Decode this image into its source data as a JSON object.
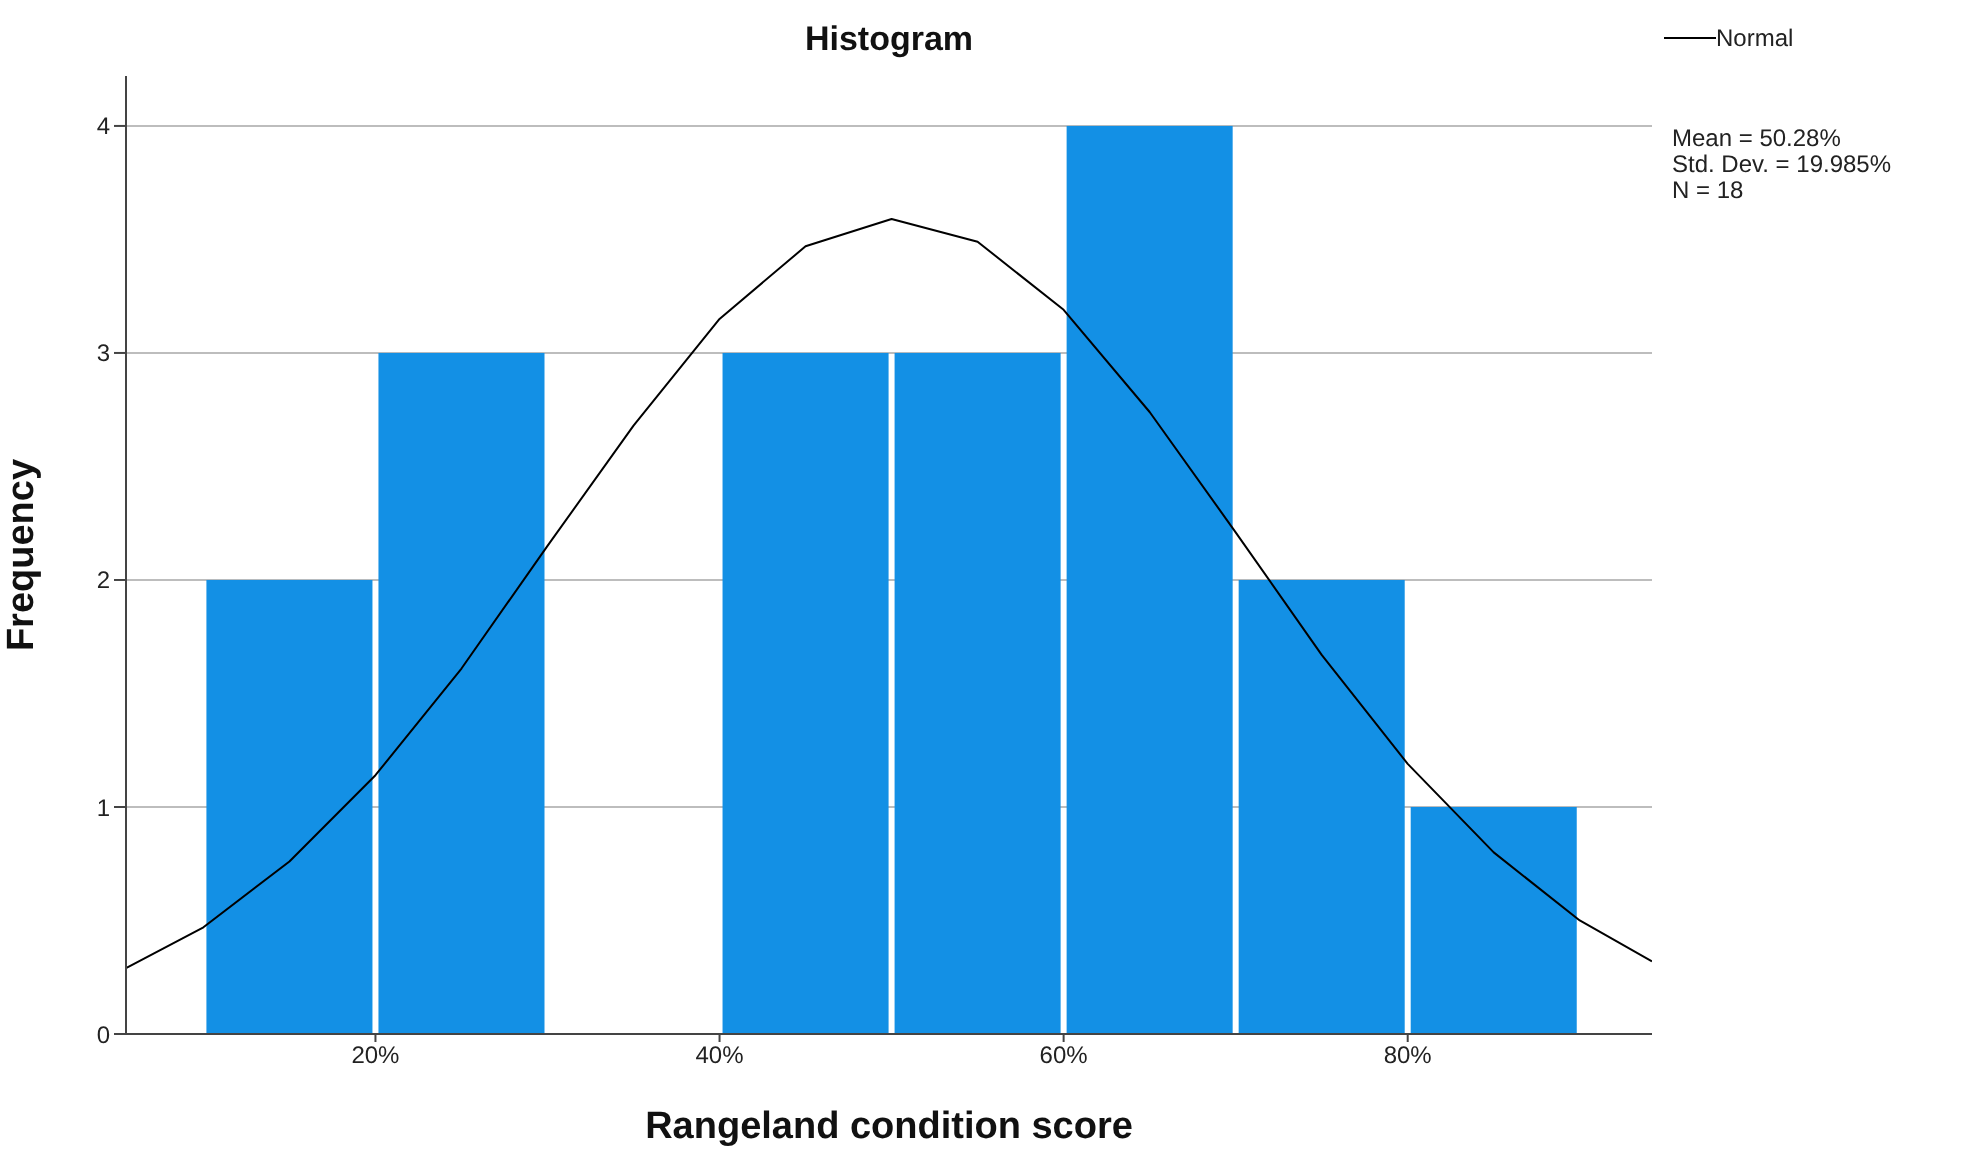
{
  "chart_data": {
    "type": "histogram",
    "title": "Histogram",
    "xlabel": "Rangeland condition score",
    "ylabel": "Frequency",
    "bins": [
      10,
      20,
      30,
      40,
      50,
      60,
      70,
      80,
      90
    ],
    "values": [
      2,
      3,
      0,
      3,
      3,
      4,
      2,
      1
    ],
    "color": "#1390e5",
    "series": [
      {
        "type": "line",
        "name": "Normal",
        "color": "#000000",
        "x": [
          5.5,
          10,
          15,
          20,
          25,
          30,
          35,
          40,
          45,
          50,
          55,
          60,
          65,
          70,
          75,
          80,
          85,
          90,
          94.2
        ],
        "values": [
          0.29,
          0.47,
          0.76,
          1.14,
          1.61,
          2.15,
          2.68,
          3.15,
          3.47,
          3.59,
          3.49,
          3.19,
          2.74,
          2.21,
          1.67,
          1.19,
          0.8,
          0.5,
          0.32
        ]
      }
    ],
    "xlim": [
      5.5,
      94.2
    ],
    "xticks": [
      {
        "value": 20,
        "label": "20%"
      },
      {
        "value": 40,
        "label": "40%"
      },
      {
        "value": 60,
        "label": "60%"
      },
      {
        "value": 80,
        "label": "80%"
      }
    ],
    "ylim": [
      0,
      4.22
    ],
    "yticks": [
      0,
      1,
      2,
      3,
      4
    ],
    "grid": "y",
    "legend": "top right",
    "marker": "none",
    "line_style": "solid",
    "annotations": [
      "Mean = 50.28%",
      "Std. Dev. = 19.985%",
      "N = 18"
    ]
  }
}
